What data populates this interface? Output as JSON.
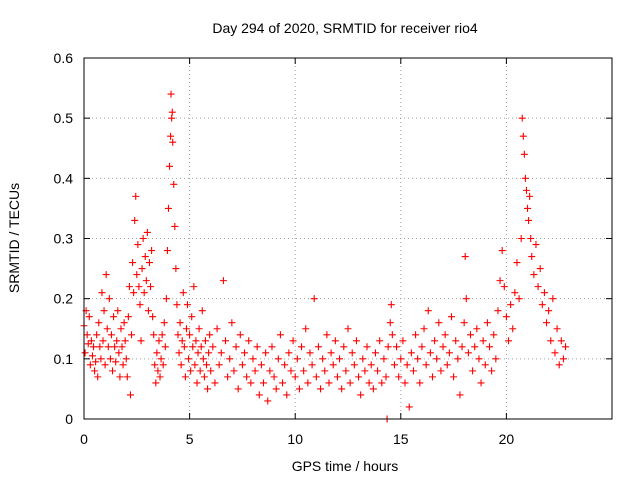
{
  "chart_data": {
    "type": "scatter",
    "title": "Day 294 of 2020, SRMTID for receiver rio4",
    "xlabel": "GPS time / hours",
    "ylabel": "SRMTID / TECUs",
    "xlim": [
      0,
      25
    ],
    "ylim": [
      0,
      0.6
    ],
    "x_ticks": [
      0,
      5,
      10,
      15,
      20
    ],
    "x_tick_labels": [
      "0",
      "5",
      "10",
      "15",
      "20"
    ],
    "y_ticks": [
      0,
      0.1,
      0.2,
      0.3,
      0.4,
      0.5,
      0.6
    ],
    "y_tick_labels": [
      "0",
      "0.1",
      "0.2",
      "0.3",
      "0.4",
      "0.5",
      "0.6"
    ],
    "grid": true,
    "marker": "plus",
    "series": [
      {
        "name": "SRMTID",
        "color": "#ff0000",
        "points": [
          [
            0.0,
            0.155
          ],
          [
            0.05,
            0.11
          ],
          [
            0.1,
            0.18
          ],
          [
            0.15,
            0.14
          ],
          [
            0.2,
            0.125
          ],
          [
            0.25,
            0.17
          ],
          [
            0.3,
            0.09
          ],
          [
            0.35,
            0.13
          ],
          [
            0.4,
            0.105
          ],
          [
            0.45,
            0.12
          ],
          [
            0.5,
            0.08
          ],
          [
            0.55,
            0.095
          ],
          [
            0.6,
            0.14
          ],
          [
            0.65,
            0.07
          ],
          [
            0.7,
            0.16
          ],
          [
            0.75,
            0.12
          ],
          [
            0.8,
            0.1
          ],
          [
            0.85,
            0.21
          ],
          [
            0.9,
            0.13
          ],
          [
            0.95,
            0.18
          ],
          [
            1.0,
            0.09
          ],
          [
            1.05,
            0.24
          ],
          [
            1.1,
            0.15
          ],
          [
            1.15,
            0.12
          ],
          [
            1.2,
            0.2
          ],
          [
            1.25,
            0.1
          ],
          [
            1.3,
            0.14
          ],
          [
            1.35,
            0.08
          ],
          [
            1.4,
            0.17
          ],
          [
            1.45,
            0.12
          ],
          [
            1.5,
            0.095
          ],
          [
            1.55,
            0.13
          ],
          [
            1.6,
            0.18
          ],
          [
            1.65,
            0.11
          ],
          [
            1.7,
            0.07
          ],
          [
            1.75,
            0.15
          ],
          [
            1.8,
            0.12
          ],
          [
            1.85,
            0.09
          ],
          [
            1.9,
            0.16
          ],
          [
            1.95,
            0.13
          ],
          [
            2.0,
            0.1
          ],
          [
            2.05,
            0.07
          ],
          [
            2.1,
            0.17
          ],
          [
            2.15,
            0.22
          ],
          [
            2.2,
            0.04
          ],
          [
            2.25,
            0.14
          ],
          [
            2.3,
            0.26
          ],
          [
            2.35,
            0.21
          ],
          [
            2.4,
            0.33
          ],
          [
            2.45,
            0.37
          ],
          [
            2.5,
            0.24
          ],
          [
            2.55,
            0.29
          ],
          [
            2.6,
            0.22
          ],
          [
            2.65,
            0.19
          ],
          [
            2.7,
            0.13
          ],
          [
            2.75,
            0.25
          ],
          [
            2.8,
            0.3
          ],
          [
            2.85,
            0.21
          ],
          [
            2.9,
            0.27
          ],
          [
            2.95,
            0.23
          ],
          [
            3.0,
            0.31
          ],
          [
            3.05,
            0.18
          ],
          [
            3.1,
            0.26
          ],
          [
            3.15,
            0.22
          ],
          [
            3.2,
            0.28
          ],
          [
            3.25,
            0.17
          ],
          [
            3.3,
            0.14
          ],
          [
            3.35,
            0.09
          ],
          [
            3.4,
            0.06
          ],
          [
            3.45,
            0.11
          ],
          [
            3.5,
            0.08
          ],
          [
            3.55,
            0.13
          ],
          [
            3.6,
            0.07
          ],
          [
            3.65,
            0.1
          ],
          [
            3.7,
            0.14
          ],
          [
            3.75,
            0.09
          ],
          [
            3.8,
            0.16
          ],
          [
            3.85,
            0.12
          ],
          [
            3.9,
            0.2
          ],
          [
            3.95,
            0.28
          ],
          [
            4.0,
            0.35
          ],
          [
            4.05,
            0.42
          ],
          [
            4.1,
            0.47
          ],
          [
            4.12,
            0.54
          ],
          [
            4.15,
            0.5
          ],
          [
            4.18,
            0.51
          ],
          [
            4.2,
            0.46
          ],
          [
            4.25,
            0.39
          ],
          [
            4.3,
            0.32
          ],
          [
            4.35,
            0.25
          ],
          [
            4.4,
            0.19
          ],
          [
            4.45,
            0.14
          ],
          [
            4.5,
            0.11
          ],
          [
            4.55,
            0.16
          ],
          [
            4.6,
            0.09
          ],
          [
            4.65,
            0.13
          ],
          [
            4.7,
            0.21
          ],
          [
            4.75,
            0.12
          ],
          [
            4.8,
            0.07
          ],
          [
            4.85,
            0.15
          ],
          [
            4.9,
            0.19
          ],
          [
            4.95,
            0.1
          ],
          [
            5.0,
            0.14
          ],
          [
            5.05,
            0.08
          ],
          [
            5.1,
            0.17
          ],
          [
            5.15,
            0.12
          ],
          [
            5.2,
            0.22
          ],
          [
            5.25,
            0.09
          ],
          [
            5.3,
            0.13
          ],
          [
            5.35,
            0.06
          ],
          [
            5.4,
            0.11
          ],
          [
            5.45,
            0.15
          ],
          [
            5.5,
            0.08
          ],
          [
            5.55,
            0.12
          ],
          [
            5.6,
            0.18
          ],
          [
            5.65,
            0.1
          ],
          [
            5.7,
            0.07
          ],
          [
            5.75,
            0.13
          ],
          [
            5.8,
            0.09
          ],
          [
            5.85,
            0.05
          ],
          [
            5.9,
            0.11
          ],
          [
            5.95,
            0.14
          ],
          [
            6.0,
            0.08
          ],
          [
            6.1,
            0.12
          ],
          [
            6.2,
            0.06
          ],
          [
            6.3,
            0.15
          ],
          [
            6.4,
            0.09
          ],
          [
            6.5,
            0.11
          ],
          [
            6.6,
            0.23
          ],
          [
            6.7,
            0.13
          ],
          [
            6.8,
            0.07
          ],
          [
            6.9,
            0.1
          ],
          [
            7.0,
            0.16
          ],
          [
            7.1,
            0.08
          ],
          [
            7.2,
            0.12
          ],
          [
            7.3,
            0.05
          ],
          [
            7.4,
            0.14
          ],
          [
            7.5,
            0.09
          ],
          [
            7.6,
            0.11
          ],
          [
            7.7,
            0.07
          ],
          [
            7.8,
            0.13
          ],
          [
            7.9,
            0.06
          ],
          [
            8.0,
            0.1
          ],
          [
            8.1,
            0.08
          ],
          [
            8.2,
            0.12
          ],
          [
            8.3,
            0.04
          ],
          [
            8.4,
            0.09
          ],
          [
            8.5,
            0.06
          ],
          [
            8.6,
            0.11
          ],
          [
            8.7,
            0.03
          ],
          [
            8.8,
            0.08
          ],
          [
            8.9,
            0.12
          ],
          [
            9.0,
            0.07
          ],
          [
            9.1,
            0.05
          ],
          [
            9.2,
            0.1
          ],
          [
            9.3,
            0.14
          ],
          [
            9.4,
            0.06
          ],
          [
            9.5,
            0.09
          ],
          [
            9.6,
            0.04
          ],
          [
            9.7,
            0.11
          ],
          [
            9.8,
            0.08
          ],
          [
            9.9,
            0.13
          ],
          [
            10.0,
            0.07
          ],
          [
            10.1,
            0.1
          ],
          [
            10.2,
            0.05
          ],
          [
            10.3,
            0.12
          ],
          [
            10.4,
            0.08
          ],
          [
            10.5,
            0.15
          ],
          [
            10.6,
            0.06
          ],
          [
            10.7,
            0.11
          ],
          [
            10.8,
            0.09
          ],
          [
            10.9,
            0.2
          ],
          [
            11.0,
            0.07
          ],
          [
            11.1,
            0.12
          ],
          [
            11.2,
            0.05
          ],
          [
            11.3,
            0.1
          ],
          [
            11.4,
            0.08
          ],
          [
            11.5,
            0.14
          ],
          [
            11.6,
            0.06
          ],
          [
            11.7,
            0.11
          ],
          [
            11.8,
            0.09
          ],
          [
            11.9,
            0.13
          ],
          [
            12.0,
            0.07
          ],
          [
            12.1,
            0.1
          ],
          [
            12.2,
            0.05
          ],
          [
            12.3,
            0.12
          ],
          [
            12.4,
            0.08
          ],
          [
            12.5,
            0.15
          ],
          [
            12.6,
            0.06
          ],
          [
            12.7,
            0.11
          ],
          [
            12.8,
            0.09
          ],
          [
            12.9,
            0.13
          ],
          [
            13.0,
            0.07
          ],
          [
            13.1,
            0.04
          ],
          [
            13.2,
            0.1
          ],
          [
            13.3,
            0.08
          ],
          [
            13.4,
            0.12
          ],
          [
            13.5,
            0.06
          ],
          [
            13.6,
            0.09
          ],
          [
            13.7,
            0.05
          ],
          [
            13.8,
            0.11
          ],
          [
            13.9,
            0.08
          ],
          [
            14.0,
            0.13
          ],
          [
            14.1,
            0.06
          ],
          [
            14.2,
            0.1
          ],
          [
            14.3,
            0.07
          ],
          [
            14.35,
            0.0
          ],
          [
            14.4,
            0.12
          ],
          [
            14.5,
            0.16
          ],
          [
            14.55,
            0.19
          ],
          [
            14.6,
            0.14
          ],
          [
            14.7,
            0.09
          ],
          [
            14.8,
            0.12
          ],
          [
            14.9,
            0.07
          ],
          [
            15.0,
            0.1
          ],
          [
            15.1,
            0.13
          ],
          [
            15.2,
            0.06
          ],
          [
            15.3,
            0.09
          ],
          [
            15.4,
            0.02
          ],
          [
            15.5,
            0.11
          ],
          [
            15.6,
            0.08
          ],
          [
            15.7,
            0.14
          ],
          [
            15.8,
            0.1
          ],
          [
            15.9,
            0.06
          ],
          [
            16.0,
            0.12
          ],
          [
            16.1,
            0.15
          ],
          [
            16.2,
            0.09
          ],
          [
            16.3,
            0.18
          ],
          [
            16.4,
            0.11
          ],
          [
            16.5,
            0.07
          ],
          [
            16.6,
            0.13
          ],
          [
            16.7,
            0.1
          ],
          [
            16.8,
            0.16
          ],
          [
            16.9,
            0.08
          ],
          [
            17.0,
            0.12
          ],
          [
            17.1,
            0.14
          ],
          [
            17.2,
            0.09
          ],
          [
            17.3,
            0.11
          ],
          [
            17.4,
            0.17
          ],
          [
            17.5,
            0.07
          ],
          [
            17.6,
            0.13
          ],
          [
            17.7,
            0.1
          ],
          [
            17.8,
            0.04
          ],
          [
            17.9,
            0.12
          ],
          [
            18.0,
            0.16
          ],
          [
            18.05,
            0.27
          ],
          [
            18.1,
            0.2
          ],
          [
            18.2,
            0.11
          ],
          [
            18.3,
            0.14
          ],
          [
            18.4,
            0.08
          ],
          [
            18.5,
            0.12
          ],
          [
            18.6,
            0.15
          ],
          [
            18.7,
            0.1
          ],
          [
            18.8,
            0.06
          ],
          [
            18.9,
            0.13
          ],
          [
            19.0,
            0.09
          ],
          [
            19.1,
            0.16
          ],
          [
            19.2,
            0.12
          ],
          [
            19.3,
            0.08
          ],
          [
            19.4,
            0.14
          ],
          [
            19.5,
            0.1
          ],
          [
            19.6,
            0.18
          ],
          [
            19.7,
            0.23
          ],
          [
            19.8,
            0.28
          ],
          [
            19.9,
            0.22
          ],
          [
            20.0,
            0.17
          ],
          [
            20.1,
            0.13
          ],
          [
            20.2,
            0.19
          ],
          [
            20.3,
            0.15
          ],
          [
            20.4,
            0.21
          ],
          [
            20.5,
            0.26
          ],
          [
            20.6,
            0.2
          ],
          [
            20.7,
            0.3
          ],
          [
            20.75,
            0.5
          ],
          [
            20.8,
            0.47
          ],
          [
            20.85,
            0.44
          ],
          [
            20.9,
            0.4
          ],
          [
            20.95,
            0.38
          ],
          [
            21.0,
            0.35
          ],
          [
            21.05,
            0.33
          ],
          [
            21.1,
            0.37
          ],
          [
            21.15,
            0.3
          ],
          [
            21.2,
            0.27
          ],
          [
            21.3,
            0.24
          ],
          [
            21.4,
            0.29
          ],
          [
            21.5,
            0.22
          ],
          [
            21.6,
            0.25
          ],
          [
            21.7,
            0.19
          ],
          [
            21.8,
            0.21
          ],
          [
            21.9,
            0.16
          ],
          [
            22.0,
            0.18
          ],
          [
            22.1,
            0.13
          ],
          [
            22.2,
            0.2
          ],
          [
            22.3,
            0.11
          ],
          [
            22.4,
            0.15
          ],
          [
            22.5,
            0.09
          ],
          [
            22.6,
            0.13
          ],
          [
            22.7,
            0.1
          ],
          [
            22.8,
            0.12
          ]
        ]
      }
    ]
  }
}
